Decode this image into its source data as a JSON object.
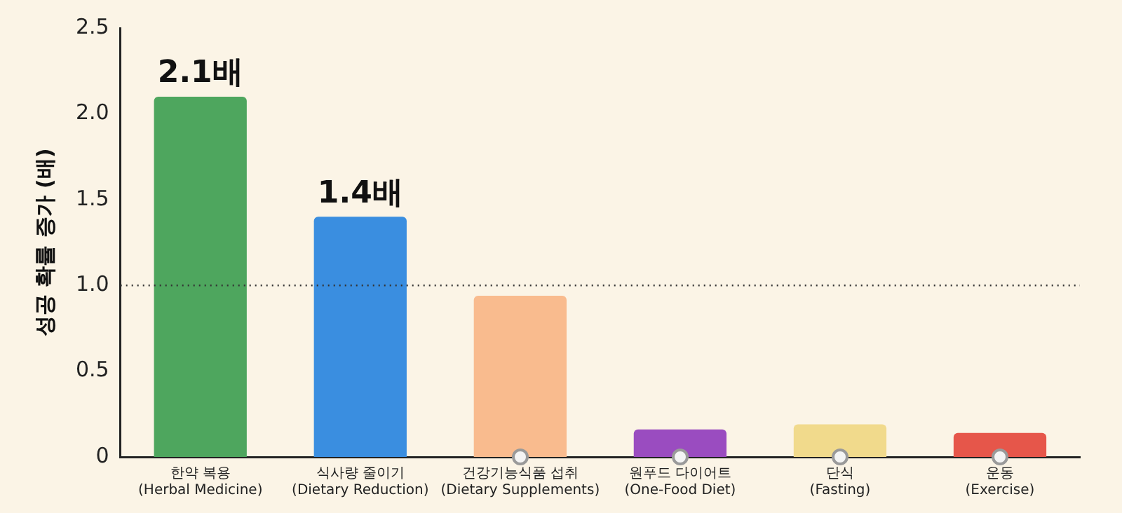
{
  "chart_data": {
    "type": "bar",
    "categories": [
      "한약 복용\n(Herbal Medicine)",
      "식사량 줄이기\n(Dietary Reduction)",
      "건강기능식품 섭취\n(Dietary Supplements)",
      "원푸드 다이어트\n(One-Food Diet)",
      "단식\n(Fasting)",
      "운동\n(Exercise)"
    ],
    "values": [
      2.1,
      1.4,
      0.94,
      0.16,
      0.19,
      0.14
    ],
    "colors": [
      "#4ea65e",
      "#3a8ee0",
      "#f9bb8e",
      "#9a4cc0",
      "#f1da8c",
      "#e6564a"
    ],
    "value_labels": [
      "2.1배",
      "1.4배",
      null,
      null,
      null,
      null
    ],
    "ylabel": "성공 확률 증가 (배)",
    "ylim": [
      0,
      2.5
    ],
    "yticks": [
      0,
      0.5,
      {
        "value": 1,
        "label": "1.0"
      },
      1.5,
      {
        "value": 2,
        "label": "2.0"
      },
      2.5
    ],
    "ref_lines": [
      {
        "axis": "y",
        "value": 1.0,
        "line_style": "dotted",
        "color": "#333333"
      }
    ],
    "grid": false,
    "legend": false
  }
}
